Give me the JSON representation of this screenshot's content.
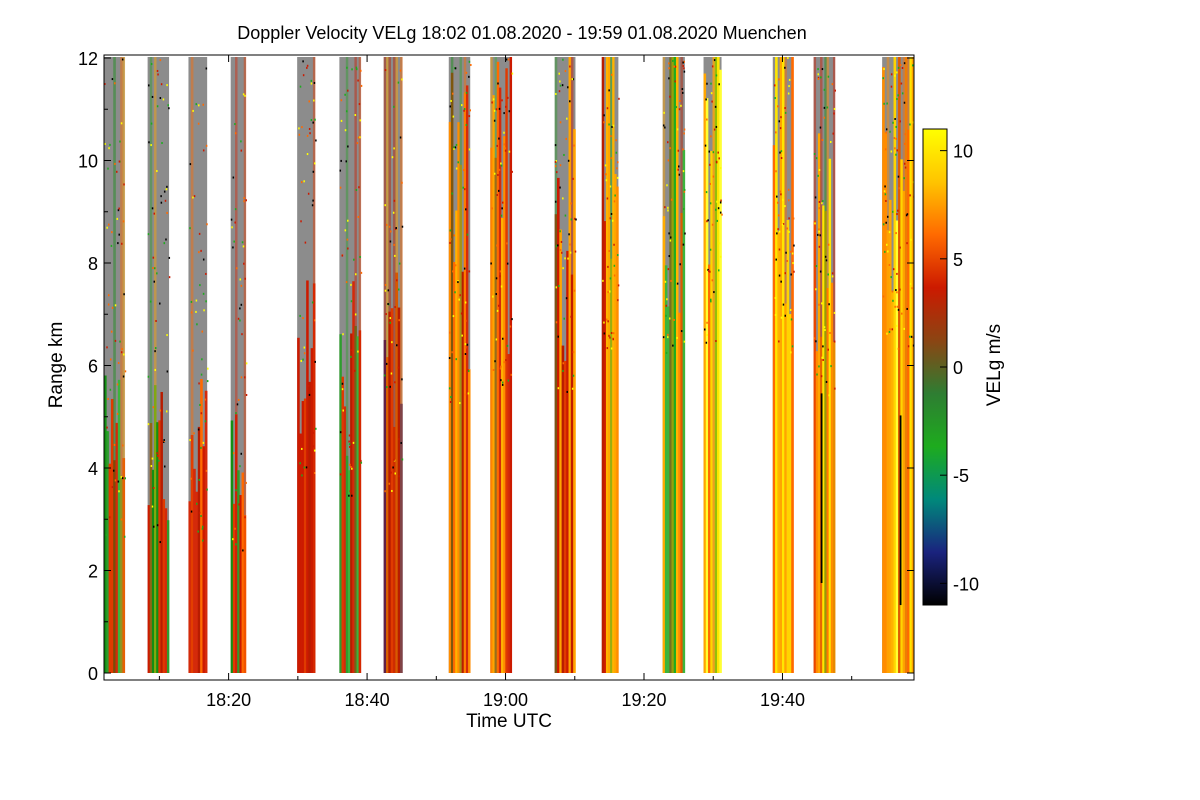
{
  "chart_data": {
    "type": "heatmap",
    "title": "Doppler Velocity VELg   18:02 01.08.2020 - 19:59 01.08.2020 Muenchen",
    "xlabel": "Time UTC",
    "ylabel": "Range km",
    "x_range_minutes_utc": [
      1082,
      1199
    ],
    "x_ticks": [
      {
        "minute": 1100,
        "label": "18:20"
      },
      {
        "minute": 1120,
        "label": "18:40"
      },
      {
        "minute": 1140,
        "label": "19:00"
      },
      {
        "minute": 1160,
        "label": "19:20"
      },
      {
        "minute": 1180,
        "label": "19:40"
      }
    ],
    "ylim": [
      0,
      12
    ],
    "y_ticks": [
      0,
      2,
      4,
      6,
      8,
      10,
      12
    ],
    "colorbar": {
      "label": "VELg m/s",
      "range": [
        -11,
        11
      ],
      "ticks": [
        10,
        5,
        0,
        -5,
        -10
      ],
      "stops": [
        "#000000",
        "#1a237e",
        "#00897b",
        "#1eab1e",
        "#2e7d32",
        "#8b4513",
        "#cc1a00",
        "#ff6a00",
        "#ffc400",
        "#ffff00"
      ],
      "no_signal_color": "#8c8c8c"
    },
    "scans": [
      {
        "start": 1082.0,
        "end": 1085.0,
        "gray_top_km": 5.2,
        "dominant": "red/green"
      },
      {
        "start": 1088.3,
        "end": 1091.4,
        "gray_top_km": 5.0,
        "dominant": "red/green"
      },
      {
        "start": 1094.2,
        "end": 1096.9,
        "gray_top_km": 5.2,
        "dominant": "red"
      },
      {
        "start": 1100.3,
        "end": 1102.5,
        "gray_top_km": 4.8,
        "dominant": "green/red"
      },
      {
        "start": 1109.9,
        "end": 1112.5,
        "gray_top_km": 7.5,
        "dominant": "red"
      },
      {
        "start": 1116.0,
        "end": 1119.1,
        "gray_top_km": 7.0,
        "dominant": "red/green"
      },
      {
        "start": 1122.4,
        "end": 1125.1,
        "gray_top_km": 7.2,
        "dominant": "red/blue"
      },
      {
        "start": 1131.8,
        "end": 1134.9,
        "gray_top_km": 10.5,
        "dominant": "red/orange"
      },
      {
        "start": 1137.8,
        "end": 1140.9,
        "gray_top_km": 11.2,
        "dominant": "orange/red"
      },
      {
        "start": 1147.1,
        "end": 1150.1,
        "gray_top_km": 11.0,
        "dominant": "orange/red"
      },
      {
        "start": 1153.9,
        "end": 1156.3,
        "gray_top_km": 12.5,
        "dominant": "red/orange"
      },
      {
        "start": 1162.7,
        "end": 1165.9,
        "gray_top_km": 12.5,
        "dominant": "orange/green"
      },
      {
        "start": 1168.6,
        "end": 1171.2,
        "gray_top_km": 12.5,
        "dominant": "orange/yellow"
      },
      {
        "start": 1178.6,
        "end": 1181.6,
        "gray_top_km": 12.5,
        "dominant": "orange/yellow"
      },
      {
        "start": 1184.5,
        "end": 1187.6,
        "gray_top_km": 10.8,
        "dominant": "orange/yellow"
      },
      {
        "start": 1194.4,
        "end": 1199.0,
        "gray_top_km": 12.5,
        "dominant": "orange/yellow"
      }
    ]
  }
}
